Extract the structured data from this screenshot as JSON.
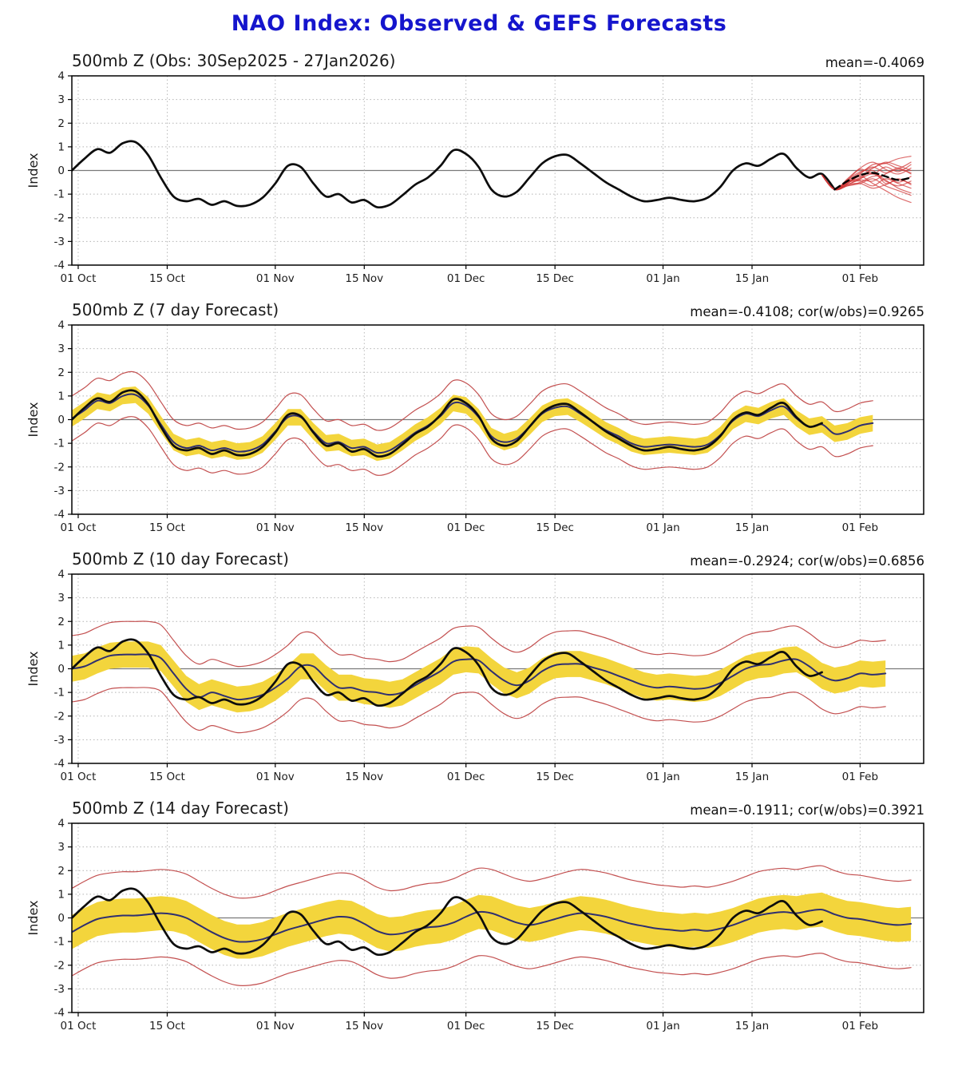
{
  "title": "NAO Index: Observed & GEFS Forecasts",
  "colors": {
    "title": "#1515cd",
    "observed_line": "#0d0d0d",
    "forecast_mean_line": "#2f2f70",
    "spread_band": "#f3d53c",
    "envelope_line": "#c35050",
    "ensemble_member_line": "#d03434",
    "ensemble_mean_dashed": "#000000",
    "grid": "#b3b3b3",
    "zero_line": "#7a7a7a",
    "frame": "#000000",
    "tick_label": "#1c1c1c"
  },
  "chart_data": {
    "type": "line",
    "x_unit": "days since 30 Sep 2025",
    "x_domain": [
      0,
      134
    ],
    "ylim": [
      -4,
      4
    ],
    "yticks": [
      4,
      3,
      2,
      1,
      0,
      -1,
      -2,
      -3,
      -4
    ],
    "ylabel": "Index",
    "xticks": [
      {
        "day": 1,
        "label": "01 Oct"
      },
      {
        "day": 15,
        "label": "15 Oct"
      },
      {
        "day": 32,
        "label": "01 Nov"
      },
      {
        "day": 46,
        "label": "15 Nov"
      },
      {
        "day": 62,
        "label": "01 Dec"
      },
      {
        "day": 76,
        "label": "15 Dec"
      },
      {
        "day": 93,
        "label": "01 Jan"
      },
      {
        "day": 107,
        "label": "15 Jan"
      },
      {
        "day": 124,
        "label": "01 Feb"
      }
    ],
    "observed": {
      "x0": 0,
      "dx": 2,
      "values": [
        0.0,
        0.5,
        0.9,
        0.75,
        1.15,
        1.2,
        0.65,
        -0.3,
        -1.1,
        -1.3,
        -1.2,
        -1.45,
        -1.3,
        -1.5,
        -1.45,
        -1.15,
        -0.55,
        0.2,
        0.15,
        -0.55,
        -1.1,
        -1.0,
        -1.35,
        -1.25,
        -1.55,
        -1.45,
        -1.05,
        -0.6,
        -0.3,
        0.2,
        0.85,
        0.7,
        0.15,
        -0.8,
        -1.1,
        -0.9,
        -0.3,
        0.3,
        0.6,
        0.65,
        0.3,
        -0.1,
        -0.5,
        -0.8,
        -1.1,
        -1.3,
        -1.25,
        -1.15,
        -1.25,
        -1.3,
        -1.15,
        -0.7,
        0.0,
        0.3,
        0.2,
        0.5,
        0.7,
        0.1,
        -0.3,
        -0.15,
        -0.8
      ]
    },
    "ensemble": {
      "x": [
        118,
        120,
        122,
        124,
        126,
        128,
        130,
        132
      ],
      "mean": [
        -0.2,
        -0.8,
        -0.45,
        -0.2,
        -0.1,
        -0.25,
        -0.4,
        -0.3
      ],
      "members": [
        [
          -0.2,
          -0.8,
          -0.5,
          -0.15,
          0.25,
          0.3,
          0.5,
          0.6
        ],
        [
          -0.2,
          -0.8,
          -0.45,
          -0.1,
          0.15,
          -0.1,
          0.1,
          -0.15
        ],
        [
          -0.2,
          -0.8,
          -0.6,
          -0.35,
          -0.15,
          -0.45,
          -0.65,
          -0.45
        ],
        [
          -0.2,
          -0.8,
          -0.65,
          -0.55,
          -0.35,
          -0.65,
          -0.85,
          -1.05
        ],
        [
          -0.2,
          -0.8,
          -0.4,
          0.05,
          -0.15,
          0.15,
          -0.05,
          0.25
        ],
        [
          -0.2,
          -0.8,
          -0.55,
          -0.25,
          -0.55,
          -0.85,
          -1.15,
          -1.35
        ],
        [
          -0.2,
          -0.8,
          -0.5,
          -0.45,
          -0.65,
          -0.35,
          -0.55,
          -0.75
        ],
        [
          -0.2,
          -0.8,
          -0.35,
          0.1,
          0.35,
          0.05,
          -0.15,
          0.1
        ],
        [
          -0.2,
          -0.8,
          -0.6,
          -0.4,
          -0.45,
          -0.15,
          0.05,
          -0.1
        ],
        [
          -0.2,
          -0.8,
          -0.45,
          -0.35,
          0.0,
          -0.55,
          -0.35,
          -0.6
        ],
        [
          -0.2,
          -0.8,
          -0.65,
          -0.5,
          -0.25,
          -0.25,
          -0.5,
          -0.25
        ],
        [
          -0.2,
          -0.8,
          -0.55,
          -0.2,
          -0.1,
          -0.4,
          -0.75,
          -0.95
        ],
        [
          -0.2,
          -0.8,
          -0.5,
          -0.3,
          0.1,
          0.3,
          0.1,
          0.35
        ],
        [
          -0.2,
          -0.8,
          -0.6,
          -0.55,
          -0.75,
          -0.6,
          -0.4,
          -0.55
        ],
        [
          -0.2,
          -0.8,
          -0.4,
          -0.05,
          0.1,
          0.35,
          0.2,
          0.0
        ]
      ]
    },
    "panels": [
      {
        "key": "observed",
        "title": "500mb Z (Obs: 30Sep2025 - 27Jan2026)",
        "stats": "mean=-0.4069",
        "kind": "obs_with_ensemble",
        "observed_points_shown": 61
      },
      {
        "key": "forecast7",
        "title": "500mb Z (7 day Forecast)",
        "stats": "mean=-0.4108; cor(w/obs)=0.9265",
        "kind": "forecast",
        "observed_points_shown": 60,
        "forecast": {
          "x0": 0,
          "dx": 2,
          "band_halfwidth": 0.35,
          "envelope_halfwidth": 0.95,
          "mean": [
            0.05,
            0.4,
            0.8,
            0.7,
            1.0,
            1.05,
            0.6,
            -0.2,
            -0.95,
            -1.2,
            -1.1,
            -1.3,
            -1.2,
            -1.35,
            -1.3,
            -1.05,
            -0.5,
            0.1,
            0.1,
            -0.5,
            -1.0,
            -0.95,
            -1.2,
            -1.15,
            -1.4,
            -1.3,
            -0.95,
            -0.55,
            -0.25,
            0.15,
            0.7,
            0.6,
            0.1,
            -0.7,
            -0.95,
            -0.8,
            -0.3,
            0.25,
            0.5,
            0.55,
            0.25,
            -0.1,
            -0.45,
            -0.7,
            -1.0,
            -1.15,
            -1.1,
            -1.05,
            -1.1,
            -1.15,
            -1.05,
            -0.65,
            -0.05,
            0.25,
            0.15,
            0.4,
            0.55,
            0.05,
            -0.3,
            -0.2,
            -0.6,
            -0.5,
            -0.25,
            -0.15
          ]
        }
      },
      {
        "key": "forecast10",
        "title": "500mb Z (10 day Forecast)",
        "stats": "mean=-0.2924; cor(w/obs)=0.6856",
        "kind": "forecast",
        "observed_points_shown": 60,
        "forecast": {
          "x0": 0,
          "dx": 2,
          "band_halfwidth": 0.55,
          "envelope_halfwidth": 1.4,
          "mean": [
            0.0,
            0.1,
            0.35,
            0.55,
            0.6,
            0.6,
            0.6,
            0.45,
            -0.2,
            -0.85,
            -1.2,
            -1.0,
            -1.15,
            -1.3,
            -1.25,
            -1.1,
            -0.8,
            -0.4,
            0.1,
            0.1,
            -0.4,
            -0.8,
            -0.8,
            -0.95,
            -1.0,
            -1.1,
            -1.0,
            -0.7,
            -0.4,
            -0.1,
            0.3,
            0.4,
            0.35,
            -0.1,
            -0.5,
            -0.7,
            -0.5,
            -0.1,
            0.15,
            0.2,
            0.2,
            0.05,
            -0.1,
            -0.3,
            -0.5,
            -0.7,
            -0.8,
            -0.75,
            -0.8,
            -0.85,
            -0.8,
            -0.6,
            -0.3,
            0.0,
            0.15,
            0.2,
            0.35,
            0.4,
            0.1,
            -0.3,
            -0.5,
            -0.4,
            -0.2,
            -0.25,
            -0.2
          ]
        }
      },
      {
        "key": "forecast14",
        "title": "500mb Z (14 day Forecast)",
        "stats": "mean=-0.1911; cor(w/obs)=0.3921",
        "kind": "forecast",
        "observed_points_shown": 60,
        "forecast": {
          "x0": 0,
          "dx": 2,
          "band_halfwidth": 0.72,
          "envelope_halfwidth": 1.85,
          "mean": [
            -0.6,
            -0.3,
            -0.05,
            0.05,
            0.1,
            0.1,
            0.15,
            0.2,
            0.15,
            0.0,
            -0.3,
            -0.6,
            -0.85,
            -1.0,
            -1.0,
            -0.9,
            -0.7,
            -0.5,
            -0.35,
            -0.2,
            -0.05,
            0.05,
            0.0,
            -0.25,
            -0.55,
            -0.7,
            -0.65,
            -0.5,
            -0.4,
            -0.35,
            -0.2,
            0.05,
            0.25,
            0.2,
            0.0,
            -0.2,
            -0.3,
            -0.2,
            -0.05,
            0.1,
            0.2,
            0.15,
            0.05,
            -0.1,
            -0.25,
            -0.35,
            -0.45,
            -0.5,
            -0.55,
            -0.5,
            -0.55,
            -0.45,
            -0.3,
            -0.1,
            0.1,
            0.2,
            0.25,
            0.2,
            0.3,
            0.35,
            0.15,
            0.0,
            -0.05,
            -0.15,
            -0.25,
            -0.3,
            -0.25
          ]
        }
      }
    ]
  }
}
